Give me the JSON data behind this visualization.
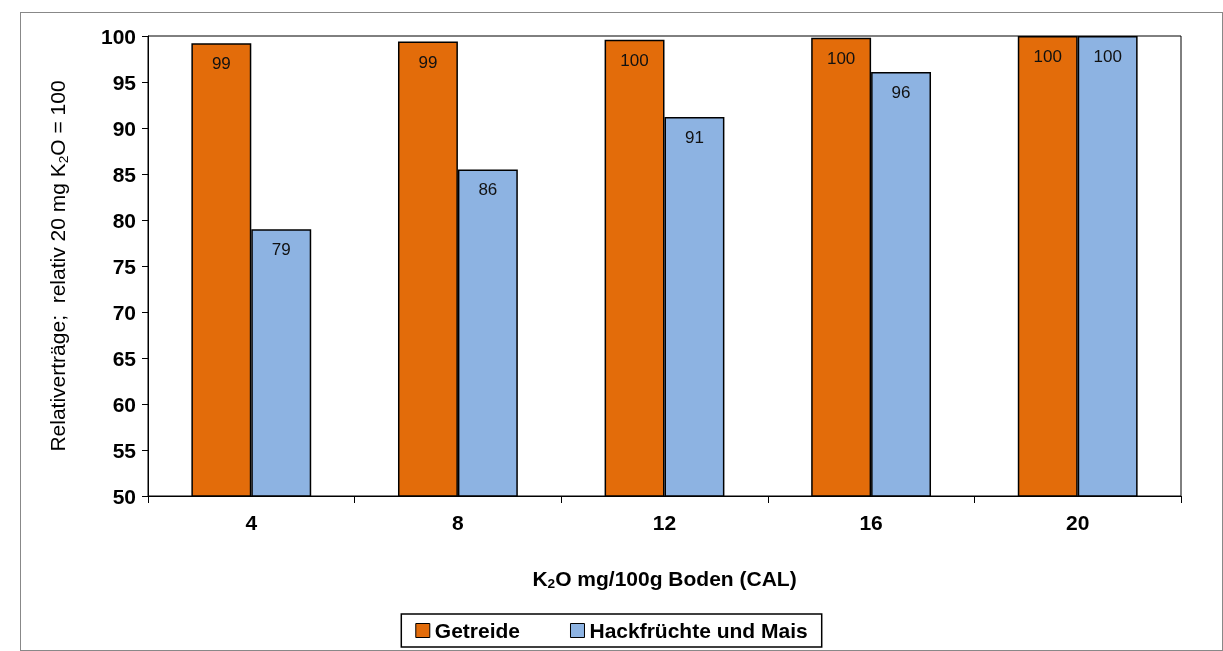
{
  "chart_data": {
    "type": "bar",
    "xlabel": "K$_{2}$O mg/100g Boden (CAL)",
    "ylabel": "Relativerträge;  relativ 20 mg K$_{2}$O = 100",
    "categories": [
      "4",
      "8",
      "12",
      "16",
      "20"
    ],
    "series": [
      {
        "name": "Getreide",
        "color": "#e36c0a",
        "values": [
          99.2,
          99.4,
          99.6,
          99.8,
          100
        ],
        "value_labels": [
          "99",
          "99",
          "100",
          "100",
          "100"
        ]
      },
      {
        "name": "Hackfrüchte und Mais",
        "color": "#8db3e2",
        "values": [
          79,
          85.5,
          91.2,
          96.1,
          100
        ],
        "value_labels": [
          "79",
          "86",
          "91",
          "96",
          "100"
        ]
      }
    ],
    "ylim": [
      50,
      100
    ],
    "yticks": [
      50,
      55,
      60,
      65,
      70,
      75,
      80,
      85,
      90,
      95,
      100
    ],
    "grid": false,
    "legend": "bottom"
  }
}
